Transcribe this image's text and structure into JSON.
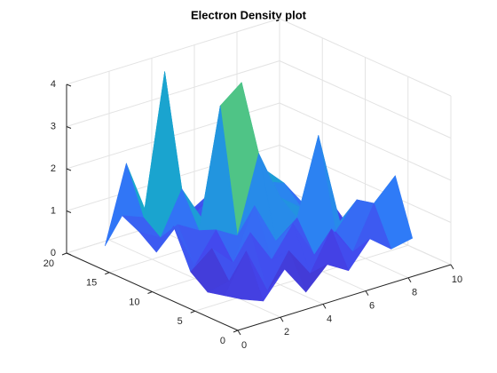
{
  "chart_data": {
    "type": "surface",
    "title": "Electron Density plot",
    "x": [
      1,
      2,
      3,
      4,
      5,
      6,
      7,
      8,
      9
    ],
    "y": [
      2,
      4,
      6,
      8,
      10,
      12,
      14,
      16,
      18
    ],
    "z": [
      [
        0.4,
        0.2,
        0.8,
        0.1,
        0.6,
        0.3,
        0.9,
        0.5,
        0.6
      ],
      [
        0.3,
        1.2,
        0.1,
        0.9,
        0.2,
        1.1,
        0.4,
        1.4,
        1.9
      ],
      [
        0.2,
        0.3,
        1.3,
        0.5,
        1.2,
        0.3,
        0.7,
        1.3,
        0.5
      ],
      [
        0.5,
        0.9,
        0.4,
        1.6,
        0.6,
        1.0,
        2.8,
        0.6,
        0.4
      ],
      [
        1.4,
        0.3,
        1.0,
        0.7,
        2.5,
        1.3,
        0.9,
        1.2,
        0.3
      ],
      [
        0.6,
        1.1,
        0.8,
        3.6,
        4.0,
        1.5,
        1.3,
        0.6,
        0.5
      ],
      [
        0.9,
        0.6,
        1.6,
        0.7,
        1.2,
        2.6,
        1.4,
        0.4,
        0.3
      ],
      [
        1.1,
        0.9,
        4.2,
        0.5,
        0.8,
        1.1,
        0.6,
        0.3,
        0.2
      ],
      [
        0.2,
        2.0,
        0.6,
        1.0,
        0.4,
        0.7,
        0.3,
        0.2,
        0.1
      ]
    ],
    "xlim": [
      0,
      10
    ],
    "ylim": [
      0,
      20
    ],
    "zlim": [
      0,
      4
    ],
    "xticks": [
      0,
      2,
      4,
      6,
      8,
      10
    ],
    "yticks": [
      0,
      5,
      10,
      15,
      20
    ],
    "zticks": [
      0,
      1,
      2,
      3,
      4
    ],
    "grid": true,
    "colormap": [
      "#3e26a8",
      "#4545ed",
      "#2e7ef7",
      "#1e9bd8",
      "#13b3c0",
      "#48c48a",
      "#a5be52",
      "#f3bf3a",
      "#f9fb15"
    ]
  }
}
